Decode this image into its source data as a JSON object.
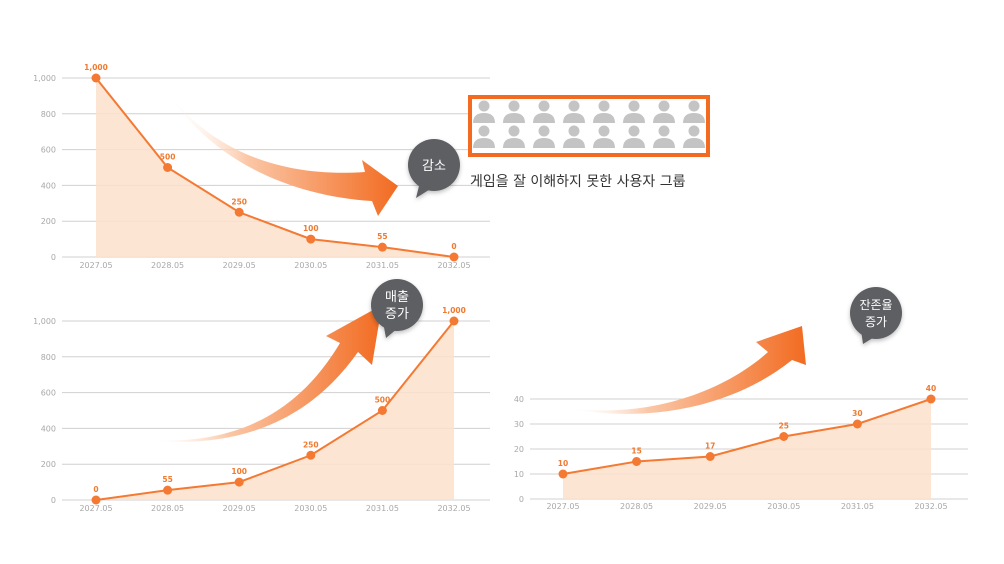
{
  "colors": {
    "accent": "#f47a33",
    "area": "#fde0cc",
    "grid": "#d0d0d0",
    "bubble": "#5d5f62",
    "person": "#c4c4c4",
    "frame": "#f26b21"
  },
  "chart_data": [
    {
      "type": "area",
      "name": "decrease-chart",
      "categories": [
        "2027.05",
        "2028.05",
        "2029.05",
        "2030.05",
        "2031.05",
        "2032.05"
      ],
      "values": [
        1000,
        500,
        250,
        100,
        55,
        0
      ],
      "data_labels": [
        "1,000",
        "500",
        "250",
        "100",
        "55",
        "0"
      ],
      "ylim": [
        0,
        1000
      ],
      "yticks": [
        0,
        200,
        400,
        600,
        800,
        1000
      ],
      "ytick_labels": [
        "0",
        "200",
        "400",
        "600",
        "800",
        "1,000"
      ],
      "trend": "down"
    },
    {
      "type": "area",
      "name": "revenue-chart",
      "categories": [
        "2027.05",
        "2028.05",
        "2029.05",
        "2030.05",
        "2031.05",
        "2032.05"
      ],
      "values": [
        0,
        55,
        100,
        250,
        500,
        1000
      ],
      "data_labels": [
        "0",
        "55",
        "100",
        "250",
        "500",
        "1,000"
      ],
      "ylim": [
        0,
        1000
      ],
      "yticks": [
        0,
        200,
        400,
        600,
        800,
        1000
      ],
      "ytick_labels": [
        "0",
        "200",
        "400",
        "600",
        "800",
        "1,000"
      ],
      "trend": "up"
    },
    {
      "type": "area",
      "name": "retention-chart",
      "categories": [
        "2027.05",
        "2028.05",
        "2029.05",
        "2030.05",
        "2031.05",
        "2032.05"
      ],
      "values": [
        10,
        15,
        17,
        25,
        30,
        40
      ],
      "data_labels": [
        "10",
        "15",
        "17",
        "25",
        "30",
        "40"
      ],
      "ylim": [
        0,
        40
      ],
      "yticks": [
        0,
        10,
        20,
        30,
        40
      ],
      "ytick_labels": [
        "0",
        "10",
        "20",
        "30",
        "40"
      ],
      "trend": "up"
    }
  ],
  "annotations": {
    "decrease_bubble": [
      "감소"
    ],
    "revenue_bubble": [
      "매출",
      "증가"
    ],
    "retention_bubble": [
      "잔존율",
      "증가"
    ],
    "user_group_caption": "게임을 잘 이해하지 못한 사용자 그룹",
    "user_group_icon": "person-icon",
    "user_group_rows": 2,
    "user_group_cols": 8
  }
}
